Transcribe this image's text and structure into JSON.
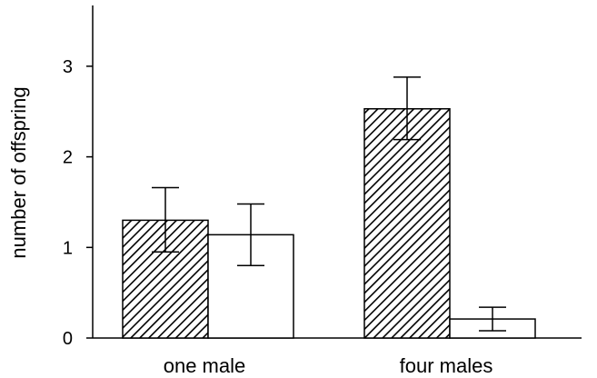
{
  "chart_data": {
    "type": "bar",
    "title": "",
    "xlabel": "",
    "ylabel": "number of offspring",
    "categories": [
      "one male",
      "four males"
    ],
    "ylim": [
      0,
      3.7
    ],
    "yticks": [
      0,
      1,
      2,
      3
    ],
    "grid": false,
    "legend": "none",
    "series": [
      {
        "fill": "hatched",
        "values": [
          1.3,
          2.53
        ],
        "error": [
          [
            0.95,
            1.66
          ],
          [
            2.19,
            2.88
          ]
        ]
      },
      {
        "fill": "white",
        "values": [
          1.14,
          0.21
        ],
        "error": [
          [
            0.8,
            1.48
          ],
          [
            0.08,
            0.34
          ]
        ]
      }
    ],
    "colors": {
      "stroke": "#000000",
      "background": "#ffffff"
    }
  }
}
